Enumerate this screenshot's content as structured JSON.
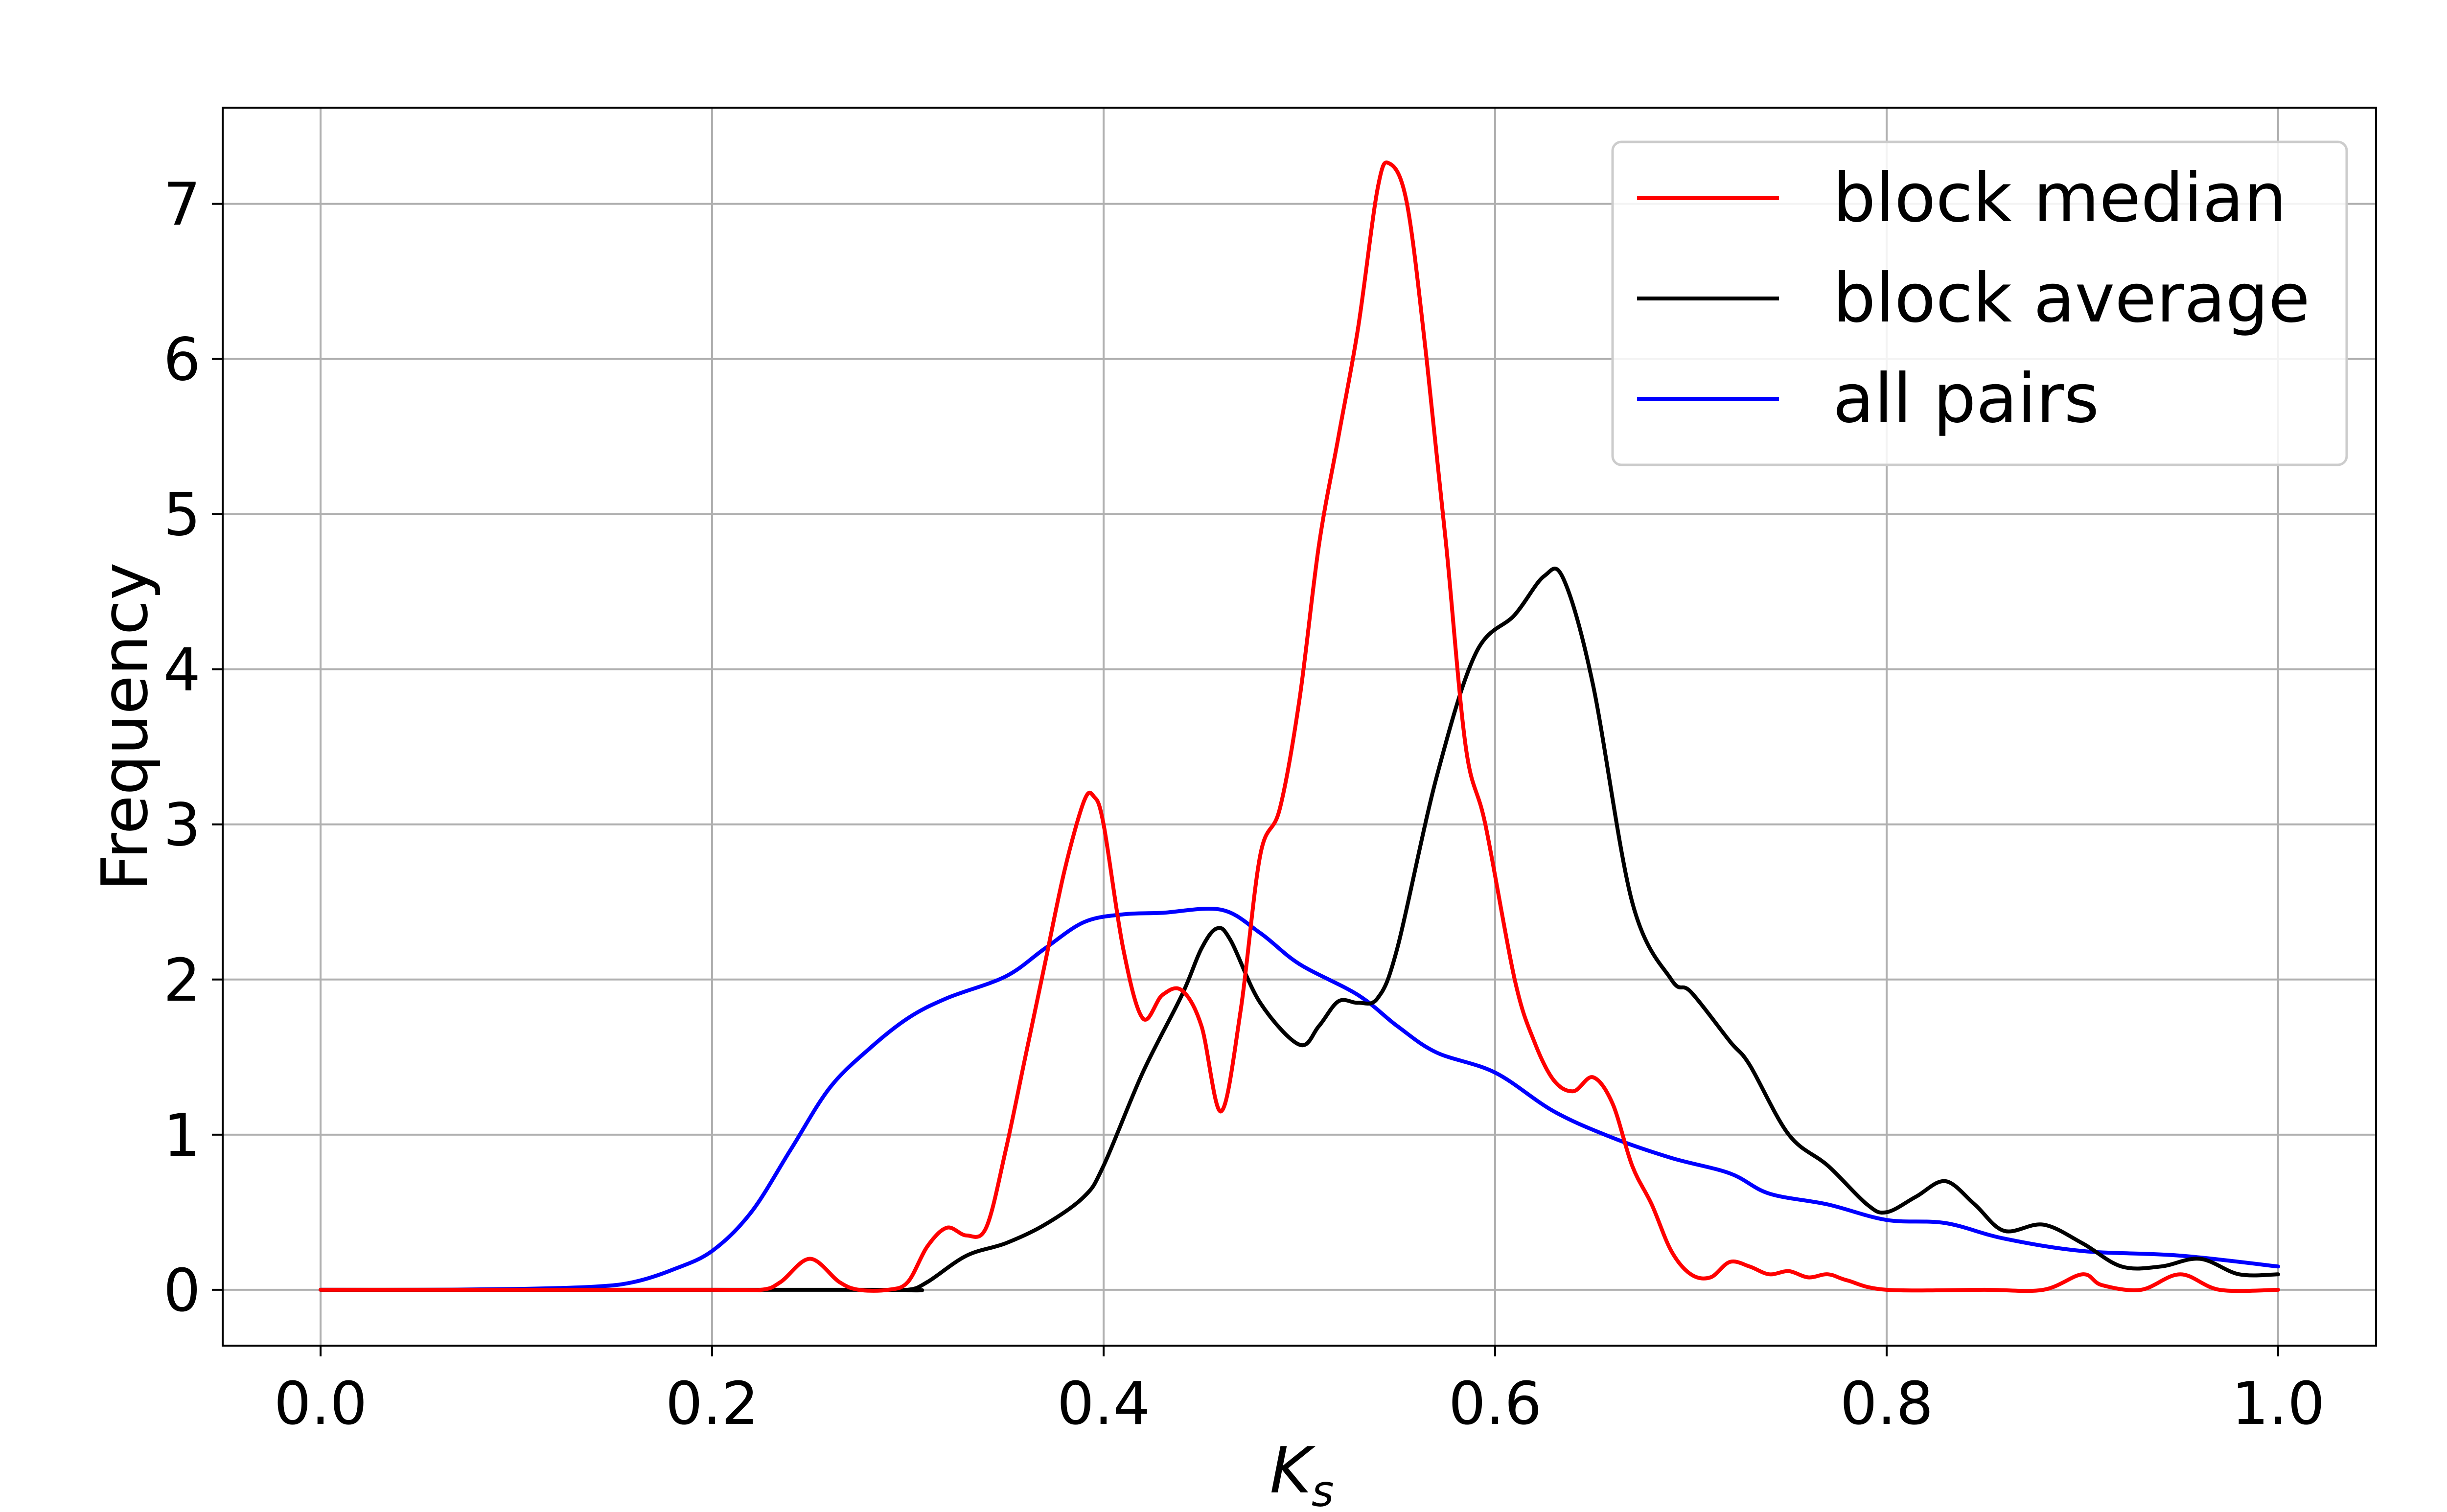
{
  "chart_data": {
    "type": "line",
    "xlabel": "K",
    "xlabel_sub": "s",
    "ylabel": "Frequency",
    "xlim": [
      -0.05,
      1.05
    ],
    "ylim": [
      -0.36,
      7.62
    ],
    "xticks": [
      "0.0",
      "0.2",
      "0.4",
      "0.6",
      "0.8",
      "1.0"
    ],
    "xtick_values": [
      0.0,
      0.2,
      0.4,
      0.6,
      0.8,
      1.0
    ],
    "yticks": [
      "0",
      "1",
      "2",
      "3",
      "4",
      "5",
      "6",
      "7"
    ],
    "ytick_values": [
      0,
      1,
      2,
      3,
      4,
      5,
      6,
      7
    ],
    "grid": true,
    "legend_position": "upper-right",
    "series": [
      {
        "name": "block median",
        "color": "#ff0000",
        "points": [
          [
            0.0,
            0.0
          ],
          [
            0.2,
            0.0
          ],
          [
            0.225,
            0.0
          ],
          [
            0.235,
            0.05
          ],
          [
            0.25,
            0.2
          ],
          [
            0.265,
            0.05
          ],
          [
            0.275,
            0.0
          ],
          [
            0.29,
            0.0
          ],
          [
            0.3,
            0.05
          ],
          [
            0.31,
            0.28
          ],
          [
            0.32,
            0.4
          ],
          [
            0.33,
            0.35
          ],
          [
            0.34,
            0.4
          ],
          [
            0.35,
            0.9
          ],
          [
            0.36,
            1.5
          ],
          [
            0.37,
            2.1
          ],
          [
            0.38,
            2.7
          ],
          [
            0.39,
            3.15
          ],
          [
            0.395,
            3.18
          ],
          [
            0.4,
            3.0
          ],
          [
            0.41,
            2.2
          ],
          [
            0.42,
            1.75
          ],
          [
            0.43,
            1.9
          ],
          [
            0.44,
            1.93
          ],
          [
            0.45,
            1.7
          ],
          [
            0.46,
            1.15
          ],
          [
            0.47,
            1.8
          ],
          [
            0.48,
            2.8
          ],
          [
            0.49,
            3.1
          ],
          [
            0.5,
            3.8
          ],
          [
            0.51,
            4.8
          ],
          [
            0.52,
            5.5
          ],
          [
            0.53,
            6.2
          ],
          [
            0.54,
            7.1
          ],
          [
            0.546,
            7.26
          ],
          [
            0.555,
            7.0
          ],
          [
            0.565,
            6.0
          ],
          [
            0.575,
            4.8
          ],
          [
            0.585,
            3.5
          ],
          [
            0.595,
            3.0
          ],
          [
            0.61,
            2.0
          ],
          [
            0.62,
            1.6
          ],
          [
            0.63,
            1.35
          ],
          [
            0.64,
            1.28
          ],
          [
            0.65,
            1.37
          ],
          [
            0.66,
            1.2
          ],
          [
            0.67,
            0.8
          ],
          [
            0.68,
            0.55
          ],
          [
            0.69,
            0.25
          ],
          [
            0.7,
            0.1
          ],
          [
            0.71,
            0.08
          ],
          [
            0.72,
            0.18
          ],
          [
            0.73,
            0.15
          ],
          [
            0.74,
            0.1
          ],
          [
            0.75,
            0.12
          ],
          [
            0.76,
            0.08
          ],
          [
            0.77,
            0.1
          ],
          [
            0.78,
            0.06
          ],
          [
            0.8,
            0.0
          ],
          [
            0.85,
            0.0
          ],
          [
            0.88,
            0.0
          ],
          [
            0.9,
            0.1
          ],
          [
            0.91,
            0.03
          ],
          [
            0.93,
            0.0
          ],
          [
            0.95,
            0.1
          ],
          [
            0.97,
            0.0
          ],
          [
            1.0,
            0.0
          ]
        ]
      },
      {
        "name": "block average",
        "color": "#000000",
        "points": [
          [
            0.0,
            0.0
          ],
          [
            0.28,
            0.0
          ],
          [
            0.3,
            0.0
          ],
          [
            0.31,
            0.05
          ],
          [
            0.33,
            0.22
          ],
          [
            0.35,
            0.3
          ],
          [
            0.37,
            0.42
          ],
          [
            0.39,
            0.6
          ],
          [
            0.4,
            0.8
          ],
          [
            0.42,
            1.4
          ],
          [
            0.44,
            1.9
          ],
          [
            0.45,
            2.2
          ],
          [
            0.458,
            2.33
          ],
          [
            0.465,
            2.25
          ],
          [
            0.48,
            1.85
          ],
          [
            0.5,
            1.58
          ],
          [
            0.51,
            1.7
          ],
          [
            0.52,
            1.86
          ],
          [
            0.53,
            1.85
          ],
          [
            0.54,
            1.88
          ],
          [
            0.55,
            2.2
          ],
          [
            0.57,
            3.3
          ],
          [
            0.59,
            4.1
          ],
          [
            0.61,
            4.35
          ],
          [
            0.625,
            4.6
          ],
          [
            0.635,
            4.58
          ],
          [
            0.65,
            3.9
          ],
          [
            0.67,
            2.5
          ],
          [
            0.69,
            2.0
          ],
          [
            0.7,
            1.92
          ],
          [
            0.72,
            1.6
          ],
          [
            0.73,
            1.45
          ],
          [
            0.75,
            1.0
          ],
          [
            0.77,
            0.8
          ],
          [
            0.79,
            0.55
          ],
          [
            0.8,
            0.5
          ],
          [
            0.815,
            0.6
          ],
          [
            0.83,
            0.7
          ],
          [
            0.845,
            0.55
          ],
          [
            0.86,
            0.38
          ],
          [
            0.88,
            0.42
          ],
          [
            0.9,
            0.3
          ],
          [
            0.92,
            0.15
          ],
          [
            0.94,
            0.15
          ],
          [
            0.96,
            0.2
          ],
          [
            0.98,
            0.1
          ],
          [
            1.0,
            0.1
          ]
        ]
      },
      {
        "name": "all pairs",
        "color": "#0000ff",
        "points": [
          [
            0.0,
            0.0
          ],
          [
            0.05,
            0.0
          ],
          [
            0.1,
            0.005
          ],
          [
            0.14,
            0.02
          ],
          [
            0.16,
            0.05
          ],
          [
            0.18,
            0.13
          ],
          [
            0.2,
            0.25
          ],
          [
            0.22,
            0.5
          ],
          [
            0.24,
            0.9
          ],
          [
            0.26,
            1.3
          ],
          [
            0.28,
            1.55
          ],
          [
            0.3,
            1.75
          ],
          [
            0.32,
            1.88
          ],
          [
            0.35,
            2.02
          ],
          [
            0.37,
            2.2
          ],
          [
            0.39,
            2.37
          ],
          [
            0.41,
            2.42
          ],
          [
            0.43,
            2.43
          ],
          [
            0.46,
            2.45
          ],
          [
            0.48,
            2.3
          ],
          [
            0.5,
            2.1
          ],
          [
            0.53,
            1.9
          ],
          [
            0.55,
            1.7
          ],
          [
            0.57,
            1.53
          ],
          [
            0.6,
            1.4
          ],
          [
            0.63,
            1.15
          ],
          [
            0.66,
            0.98
          ],
          [
            0.69,
            0.85
          ],
          [
            0.72,
            0.75
          ],
          [
            0.74,
            0.62
          ],
          [
            0.77,
            0.55
          ],
          [
            0.8,
            0.45
          ],
          [
            0.83,
            0.43
          ],
          [
            0.86,
            0.33
          ],
          [
            0.9,
            0.25
          ],
          [
            0.95,
            0.22
          ],
          [
            1.0,
            0.15
          ]
        ]
      }
    ]
  }
}
